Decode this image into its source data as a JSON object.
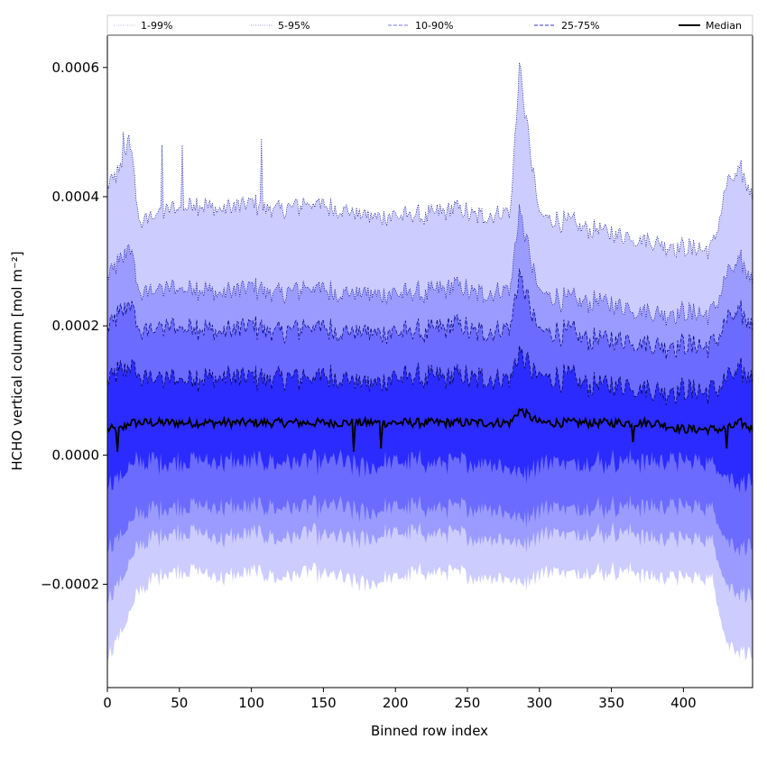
{
  "chart_data": {
    "type": "area",
    "title": "",
    "xlabel": "Binned row index",
    "ylabel": "HCHO vertical column [mol m⁻²]",
    "xlim": [
      0,
      448
    ],
    "ylim": [
      -0.00036,
      0.00065
    ],
    "xticks": [
      0,
      50,
      100,
      150,
      200,
      250,
      300,
      350,
      400
    ],
    "xtick_labels": [
      "0",
      "50",
      "100",
      "150",
      "200",
      "250",
      "300",
      "350",
      "400"
    ],
    "yticks": [
      -0.0002,
      0.0,
      0.0002,
      0.0004,
      0.0006
    ],
    "ytick_labels": [
      "−0.0002",
      "0.0000",
      "0.0002",
      "0.0004",
      "0.0006"
    ],
    "grid": false,
    "legend_position": "top",
    "x": [
      0,
      10,
      15,
      22,
      40,
      60,
      80,
      100,
      120,
      140,
      160,
      180,
      200,
      220,
      240,
      260,
      280,
      286,
      300,
      320,
      340,
      360,
      380,
      400,
      420,
      430,
      440,
      448
    ],
    "series": [
      {
        "name": "1-99%",
        "color": "#ccccff",
        "style": "dotted",
        "lower": [
          -0.00031,
          -0.00027,
          -0.00025,
          -0.00021,
          -0.00018,
          -0.00018,
          -0.00019,
          -0.00018,
          -0.00019,
          -0.00018,
          -0.00019,
          -0.0002,
          -0.00019,
          -0.00018,
          -0.00018,
          -0.00019,
          -0.00019,
          -0.0002,
          -0.00018,
          -0.00018,
          -0.00018,
          -0.00018,
          -0.00019,
          -0.00019,
          -0.00019,
          -0.00029,
          -0.0003,
          -0.00031
        ],
        "upper": [
          0.00042,
          0.00044,
          0.0005,
          0.00036,
          0.00038,
          0.00039,
          0.00038,
          0.00039,
          0.00038,
          0.00039,
          0.00038,
          0.00037,
          0.00037,
          0.00037,
          0.00038,
          0.00037,
          0.00038,
          0.0006,
          0.00037,
          0.00036,
          0.00035,
          0.00034,
          0.00033,
          0.00032,
          0.00032,
          0.00042,
          0.00044,
          0.0004
        ]
      },
      {
        "name": "5-95%",
        "color": "#9b9bff",
        "style": "dotted",
        "lower": [
          -0.00022,
          -0.00019,
          -0.00017,
          -0.00014,
          -0.00012,
          -0.00012,
          -0.00013,
          -0.00012,
          -0.00013,
          -0.00012,
          -0.00013,
          -0.00013,
          -0.00012,
          -0.00012,
          -0.00012,
          -0.00013,
          -0.00013,
          -0.00014,
          -0.00012,
          -0.00012,
          -0.00012,
          -0.00012,
          -0.00013,
          -0.00013,
          -0.00013,
          -0.0002,
          -0.00021,
          -0.00022
        ],
        "upper": [
          0.00028,
          0.0003,
          0.00033,
          0.00025,
          0.00026,
          0.00026,
          0.00025,
          0.00026,
          0.00025,
          0.00026,
          0.00025,
          0.00025,
          0.00025,
          0.00025,
          0.00026,
          0.00025,
          0.00026,
          0.00038,
          0.00025,
          0.00024,
          0.00024,
          0.00023,
          0.00022,
          0.00022,
          0.00022,
          0.00028,
          0.0003,
          0.00027
        ]
      },
      {
        "name": "10-90%",
        "color": "#6b6bff",
        "style": "dashed",
        "lower": [
          -0.00014,
          -0.00012,
          -0.00011,
          -9e-05,
          -8e-05,
          -8e-05,
          -8e-05,
          -8e-05,
          -8e-05,
          -8e-05,
          -8e-05,
          -9e-05,
          -8e-05,
          -8e-05,
          -8e-05,
          -8e-05,
          -9e-05,
          -0.0001,
          -8e-05,
          -8e-05,
          -8e-05,
          -8e-05,
          -8e-05,
          -8e-05,
          -8e-05,
          -0.00013,
          -0.00014,
          -0.00014
        ],
        "upper": [
          0.0002,
          0.00022,
          0.00024,
          0.00019,
          0.0002,
          0.0002,
          0.00019,
          0.0002,
          0.00019,
          0.0002,
          0.00019,
          0.00019,
          0.00019,
          0.00019,
          0.0002,
          0.00019,
          0.0002,
          0.00028,
          0.00019,
          0.00019,
          0.00018,
          0.00018,
          0.00017,
          0.00017,
          0.00017,
          0.00021,
          0.00022,
          0.0002
        ]
      },
      {
        "name": "25-75%",
        "color": "#2b2bff",
        "style": "dashed",
        "lower": [
          -4e-05,
          -3e-05,
          -2e-05,
          -1e-05,
          -1e-05,
          -1e-05,
          -1e-05,
          -1e-05,
          -1e-05,
          -1e-05,
          -1e-05,
          -2e-05,
          -1e-05,
          -1e-05,
          -1e-05,
          -1e-05,
          -2e-05,
          -3e-05,
          -1e-05,
          -1e-05,
          -1e-05,
          -1e-05,
          -1e-05,
          -1e-05,
          -1e-05,
          -3e-05,
          -4e-05,
          -4e-05
        ],
        "upper": [
          0.00012,
          0.00013,
          0.00014,
          0.00012,
          0.00012,
          0.00012,
          0.00012,
          0.00012,
          0.00012,
          0.00012,
          0.00012,
          0.00011,
          0.00012,
          0.00012,
          0.00012,
          0.00012,
          0.00012,
          0.00016,
          0.00012,
          0.00012,
          0.00011,
          0.00011,
          0.0001,
          0.0001,
          0.0001,
          0.00012,
          0.00013,
          0.00012
        ]
      },
      {
        "name": "Median",
        "color": "#000000",
        "style": "solid",
        "values": [
          4e-05,
          4e-05,
          5e-05,
          5e-05,
          5e-05,
          5e-05,
          5e-05,
          5e-05,
          5e-05,
          5e-05,
          5e-05,
          5e-05,
          5e-05,
          5e-05,
          5e-05,
          5e-05,
          5e-05,
          7e-05,
          5e-05,
          5e-05,
          5e-05,
          5e-05,
          5e-05,
          4e-05,
          4e-05,
          4e-05,
          5e-05,
          4e-05
        ]
      }
    ],
    "spikes_upper": [
      {
        "x": 11,
        "y": 0.0005
      },
      {
        "x": 38,
        "y": 0.00048
      },
      {
        "x": 52,
        "y": 0.00048
      },
      {
        "x": 107,
        "y": 0.00049
      },
      {
        "x": 287,
        "y": 0.0006
      }
    ],
    "dips_median": [
      {
        "x": 7,
        "y": 5e-06
      },
      {
        "x": 171,
        "y": 5e-06
      },
      {
        "x": 190,
        "y": 1e-05
      },
      {
        "x": 365,
        "y": 2e-05
      },
      {
        "x": 430,
        "y": 1e-05
      }
    ]
  }
}
